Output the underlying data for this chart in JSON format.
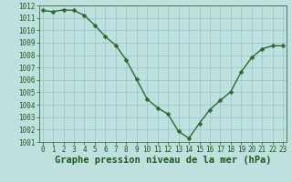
{
  "x": [
    0,
    1,
    2,
    3,
    4,
    5,
    6,
    7,
    8,
    9,
    10,
    11,
    12,
    13,
    14,
    15,
    16,
    17,
    18,
    19,
    20,
    21,
    22,
    23
  ],
  "y": [
    1011.6,
    1011.5,
    1011.65,
    1011.6,
    1011.2,
    1010.4,
    1009.5,
    1008.8,
    1007.6,
    1006.05,
    1004.45,
    1003.75,
    1003.25,
    1001.85,
    1001.3,
    1002.5,
    1003.6,
    1004.35,
    1005.05,
    1006.65,
    1007.8,
    1008.5,
    1008.75,
    1008.75
  ],
  "line_color": "#2d6a2d",
  "marker_color": "#2d6a2d",
  "bg_color": "#c0e0e0",
  "grid_color": "#90c8c8",
  "xlabel": "Graphe pression niveau de la mer (hPa)",
  "ylim_min": 1001,
  "ylim_max": 1012,
  "xlim_min": 0,
  "xlim_max": 23,
  "yticks": [
    1001,
    1002,
    1003,
    1004,
    1005,
    1006,
    1007,
    1008,
    1009,
    1010,
    1011,
    1012
  ],
  "xticks": [
    0,
    1,
    2,
    3,
    4,
    5,
    6,
    7,
    8,
    9,
    10,
    11,
    12,
    13,
    14,
    15,
    16,
    17,
    18,
    19,
    20,
    21,
    22,
    23
  ],
  "tick_color": "#1a5c1a",
  "tick_fontsize": 5.5,
  "xlabel_fontsize": 7.5,
  "linewidth": 1.0,
  "markersize": 2.5
}
